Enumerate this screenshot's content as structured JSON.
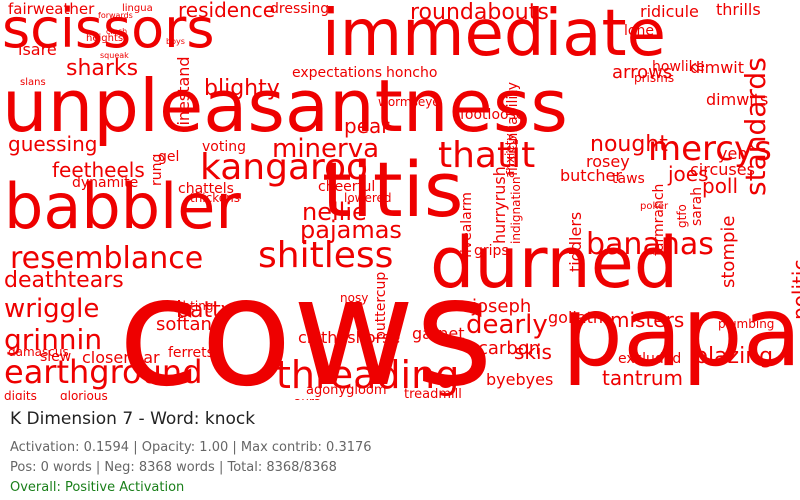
{
  "word_cloud": {
    "color": "#ee0000",
    "words": [
      "cows",
      "papa",
      "unpleasantness",
      "immediate",
      "scissors",
      "babbler",
      "titis",
      "durned",
      "resemblance",
      "shitless",
      "earthground",
      "threading",
      "kangaroo",
      "thatit",
      "mercys",
      "bananas",
      "minerva",
      "grinnin",
      "wriggle",
      "pajamas",
      "sharks",
      "deathtears",
      "batty",
      "dearly",
      "nellie",
      "standards",
      "residence",
      "roundabouts",
      "feetheels",
      "guessing",
      "nought",
      "blighty",
      "joes",
      "joseph",
      "poll",
      "misters",
      "tantrum",
      "blazing",
      "closenear",
      "softan",
      "ferrets",
      "goliath",
      "carbon",
      "skis",
      "byebyes",
      "circuses",
      "taws",
      "chattels",
      "cheerful",
      "dynamite",
      "voting",
      "isare",
      "fairweather",
      "dressing",
      "ridicule",
      "thrills",
      "lone",
      "arrows",
      "howlike",
      "dimwit",
      "prisms",
      "honcho",
      "expectations",
      "linestand",
      "rung",
      "gel",
      "pear",
      "rosey",
      "yen",
      "butcher",
      "fictionliability",
      "hurryrush",
      "fivealarm",
      "buttercup",
      "stompie",
      "dimwits",
      "footloose",
      "clotheshorse",
      "agonygloom",
      "treadmill",
      "digits",
      "glorious",
      "damascus",
      "slew",
      "lowered",
      "thickens",
      "sarah",
      "excluded",
      "politic",
      "plumbing",
      "garnet",
      "grips",
      "tiddlers",
      "gtfo",
      "farmranch",
      "poker",
      "aura",
      "anxiety",
      "indignation",
      "doubting",
      "nosy",
      "wormseye",
      "heights",
      "slans",
      "lingua",
      "forwards",
      "cinch",
      "squeak",
      "boys"
    ]
  },
  "info": {
    "title": "K Dimension 7 - Word: knock",
    "activation": "Activation: 0.1594 | Opacity: 1.00 | Max contrib: 0.3176",
    "counts": "Pos: 0 words | Neg: 8368 words | Total: 8368/8368",
    "status": "Overall: Positive Activation",
    "status_color": "#1a7f1a"
  }
}
